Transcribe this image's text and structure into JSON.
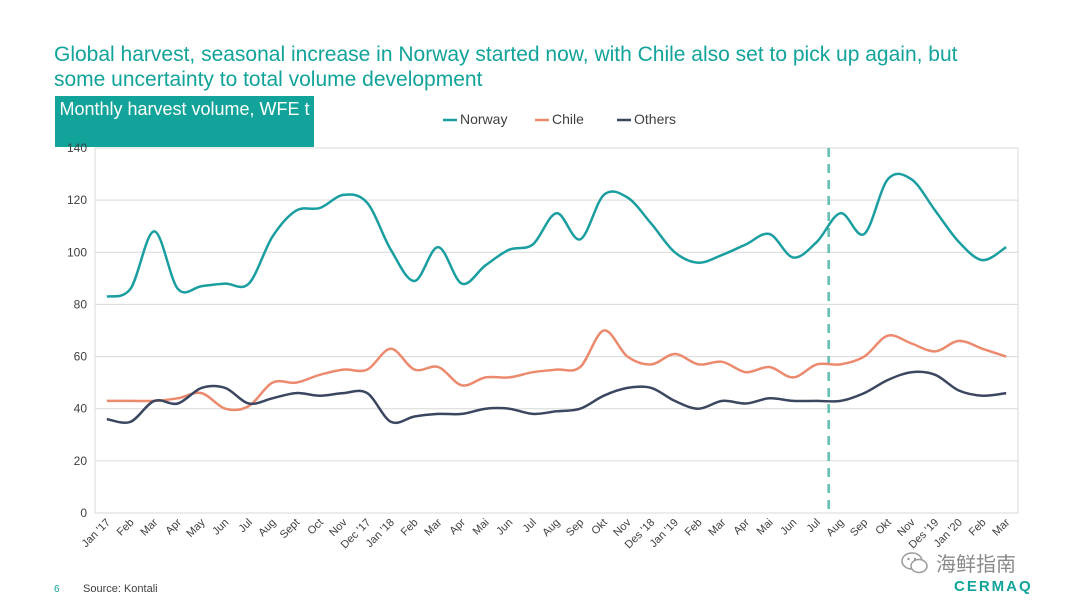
{
  "slide": {
    "title": "Global harvest, seasonal increase in Norway started now, with Chile also set to pick up again, but some uncertainty to total volume development",
    "page_number": "6",
    "source": "Source: Kontali",
    "logo": "CERMAQ",
    "watermark": "海鲜指南"
  },
  "chart_data": {
    "type": "line",
    "title": "Monthly harvest volume, WFE t",
    "legend_position": "top",
    "grid": true,
    "ylim": [
      0,
      140
    ],
    "yticks": [
      0,
      20,
      40,
      60,
      80,
      100,
      120,
      140
    ],
    "divider_after_index": 30,
    "colors": {
      "Norway": "#1a9ea0",
      "Chile": "#ec8a6e",
      "Others": "#3b4660",
      "divider": "#5fbfb3"
    },
    "categories": [
      "Jan '17",
      "Feb",
      "Mar",
      "Apr",
      "May",
      "Jun",
      "Jul",
      "Aug",
      "Sept",
      "Oct",
      "Nov",
      "Dec '17",
      "Jan '18",
      "Feb",
      "Mar",
      "Apr",
      "Mai",
      "Jun",
      "Jul",
      "Aug",
      "Sep",
      "Okt",
      "Nov",
      "Des '18",
      "Jan '19",
      "Feb",
      "Mar",
      "Apr",
      "Mai",
      "Jun",
      "Jul",
      "Aug",
      "Sep",
      "Okt",
      "Nov",
      "Des '19",
      "Jan '20",
      "Feb",
      "Mar"
    ],
    "series": [
      {
        "name": "Norway",
        "values": [
          83,
          86,
          108,
          86,
          87,
          88,
          88,
          106,
          116,
          117,
          122,
          119,
          101,
          89,
          102,
          88,
          95,
          101,
          103,
          115,
          105,
          122,
          121,
          111,
          100,
          96,
          99,
          103,
          107,
          98,
          104,
          115,
          107,
          128,
          128,
          116,
          104,
          97,
          102
        ]
      },
      {
        "name": "Chile",
        "values": [
          43,
          43,
          43,
          44,
          46,
          40,
          41,
          50,
          50,
          53,
          55,
          55,
          63,
          55,
          56,
          49,
          52,
          52,
          54,
          55,
          56,
          70,
          60,
          57,
          61,
          57,
          58,
          54,
          56,
          52,
          57,
          57,
          60,
          68,
          65,
          62,
          66,
          63,
          60
        ]
      },
      {
        "name": "Others",
        "values": [
          36,
          35,
          43,
          42,
          48,
          48,
          42,
          44,
          46,
          45,
          46,
          46,
          35,
          37,
          38,
          38,
          40,
          40,
          38,
          39,
          40,
          45,
          48,
          48,
          43,
          40,
          43,
          42,
          44,
          43,
          43,
          43,
          46,
          51,
          54,
          53,
          47,
          45,
          46
        ]
      }
    ]
  }
}
